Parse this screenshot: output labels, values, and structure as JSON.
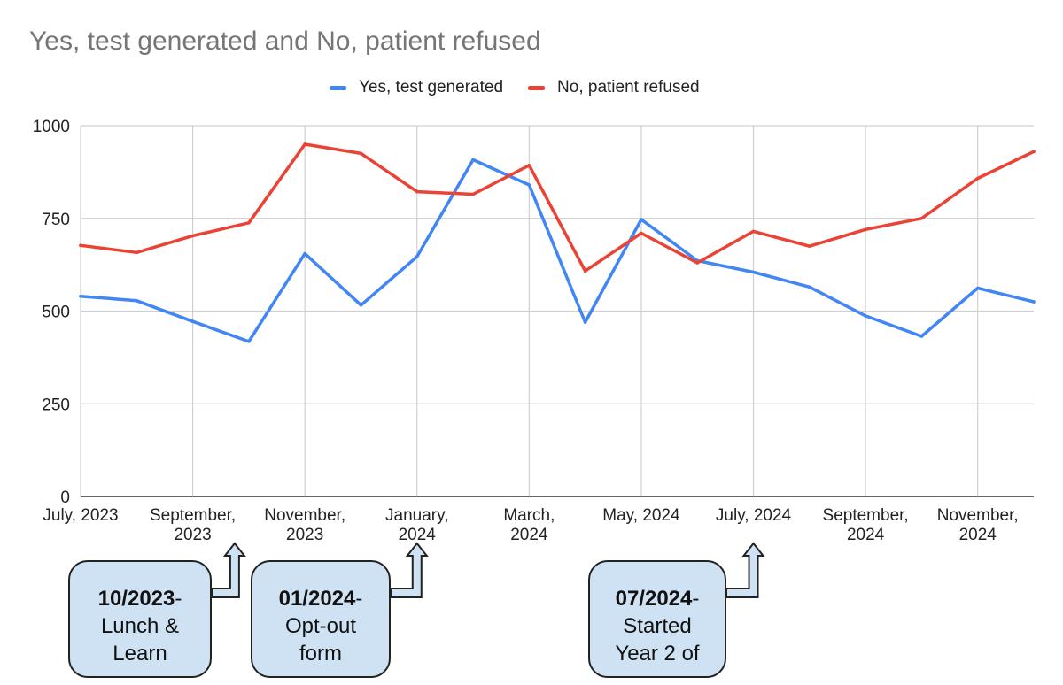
{
  "chart_data": {
    "type": "line",
    "title": "Yes, test generated and No, patient refused",
    "xlabel": "",
    "ylabel": "",
    "x": [
      "Jul 2023",
      "Aug 2023",
      "Sep 2023",
      "Oct 2023",
      "Nov 2023",
      "Dec 2023",
      "Jan 2024",
      "Feb 2024",
      "Mar 2024",
      "Apr 2024",
      "May 2024",
      "Jun 2024",
      "Jul 2024",
      "Aug 2024",
      "Sep 2024",
      "Oct 2024",
      "Nov 2024",
      "Dec 2024"
    ],
    "xtick_labels": [
      {
        "index": 0,
        "lines": [
          "July, 2023"
        ]
      },
      {
        "index": 2,
        "lines": [
          "September,",
          "2023"
        ]
      },
      {
        "index": 4,
        "lines": [
          "November,",
          "2023"
        ]
      },
      {
        "index": 6,
        "lines": [
          "January,",
          "2024"
        ]
      },
      {
        "index": 8,
        "lines": [
          "March,",
          "2024"
        ]
      },
      {
        "index": 10,
        "lines": [
          "May, 2024"
        ]
      },
      {
        "index": 12,
        "lines": [
          "July, 2024"
        ]
      },
      {
        "index": 14,
        "lines": [
          "September,",
          "2024"
        ]
      },
      {
        "index": 16,
        "lines": [
          "November,",
          "2024"
        ]
      }
    ],
    "yticks": [
      0,
      250,
      500,
      750,
      1000
    ],
    "ylim": [
      0,
      1000
    ],
    "grid": true,
    "legend_position": "top-center",
    "series": [
      {
        "name": "Yes, test generated",
        "color": "#4285f4",
        "values": [
          540,
          528,
          472,
          418,
          655,
          516,
          647,
          908,
          840,
          470,
          747,
          636,
          605,
          565,
          487,
          432,
          562,
          525
        ]
      },
      {
        "name": "No, patient refused",
        "color": "#ea4335",
        "values": [
          677,
          658,
          703,
          738,
          950,
          925,
          822,
          815,
          893,
          608,
          710,
          630,
          715,
          675,
          720,
          750,
          858,
          930
        ]
      }
    ]
  },
  "annotations": [
    {
      "bold": "10/2023",
      "suffix": "-",
      "lines": [
        "Lunch &",
        "Learn"
      ],
      "target_index": 3
    },
    {
      "bold": "01/2024",
      "suffix": "-",
      "lines": [
        "Opt-out",
        "form"
      ],
      "target_index": 6
    },
    {
      "bold": "07/2024",
      "suffix": "-",
      "lines": [
        "Started",
        "Year 2 of"
      ],
      "target_index": 12
    }
  ]
}
